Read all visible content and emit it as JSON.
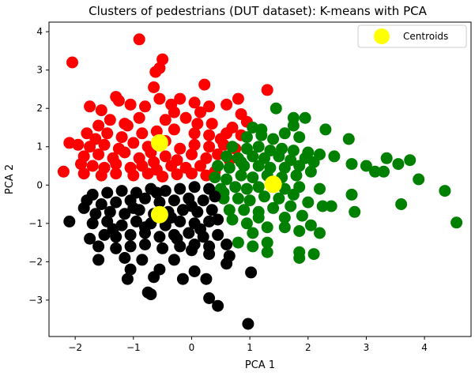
{
  "chart_data": {
    "type": "scatter",
    "title": "Clusters of pedestrians (DUT dataset): K-means with PCA",
    "xlabel": "PCA 1",
    "ylabel": "PCA 2",
    "xlim": [
      -2.45,
      4.8
    ],
    "ylim": [
      -3.95,
      4.25
    ],
    "xticks": [
      -2,
      -1,
      0,
      1,
      2,
      3,
      4
    ],
    "yticks": [
      -3,
      -2,
      -1,
      0,
      1,
      2,
      3,
      4
    ],
    "grid": false,
    "legend_position": "top-right",
    "series": [
      {
        "color": "#ff0000",
        "points": [
          [
            -0.9,
            3.8
          ],
          [
            -2.05,
            3.2
          ],
          [
            -0.5,
            3.28
          ],
          [
            -0.55,
            3.05
          ],
          [
            -0.62,
            2.95
          ],
          [
            -0.65,
            2.55
          ],
          [
            0.22,
            2.62
          ],
          [
            -1.3,
            2.3
          ],
          [
            -1.75,
            2.05
          ],
          [
            -1.55,
            1.95
          ],
          [
            -1.25,
            2.2
          ],
          [
            -1.05,
            2.1
          ],
          [
            -0.8,
            2.05
          ],
          [
            -0.55,
            2.25
          ],
          [
            -0.35,
            2.1
          ],
          [
            -0.2,
            2.25
          ],
          [
            0.05,
            2.15
          ],
          [
            0.3,
            2.05
          ],
          [
            0.6,
            2.1
          ],
          [
            0.8,
            2.25
          ],
          [
            1.3,
            2.48
          ],
          [
            0.85,
            1.85
          ],
          [
            -1.6,
            1.55
          ],
          [
            -1.4,
            1.7
          ],
          [
            -1.15,
            1.6
          ],
          [
            -0.9,
            1.75
          ],
          [
            -0.45,
            1.7
          ],
          [
            -0.1,
            1.75
          ],
          [
            0.1,
            1.6
          ],
          [
            0.35,
            1.6
          ],
          [
            0.7,
            1.5
          ],
          [
            0.95,
            1.65
          ],
          [
            -1.8,
            1.35
          ],
          [
            -1.65,
            1.2
          ],
          [
            -1.45,
            1.35
          ],
          [
            -1.2,
            1.25
          ],
          [
            -0.85,
            1.35
          ],
          [
            -0.6,
            1.4
          ],
          [
            -0.3,
            1.45
          ],
          [
            0.05,
            1.35
          ],
          [
            0.3,
            1.3
          ],
          [
            0.6,
            1.35
          ],
          [
            0.85,
            1.3
          ],
          [
            -2.1,
            1.1
          ],
          [
            -1.95,
            1.05
          ],
          [
            -1.75,
            1.0
          ],
          [
            -1.5,
            1.05
          ],
          [
            -1.25,
            0.95
          ],
          [
            -1.0,
            1.1
          ],
          [
            -0.75,
            1.0
          ],
          [
            -0.45,
            1.15
          ],
          [
            -0.2,
            0.95
          ],
          [
            0.05,
            1.05
          ],
          [
            0.3,
            1.0
          ],
          [
            0.55,
            1.05
          ],
          [
            0.75,
            0.95
          ],
          [
            -1.85,
            0.75
          ],
          [
            -1.6,
            0.8
          ],
          [
            -1.35,
            0.7
          ],
          [
            -1.15,
            0.85
          ],
          [
            -0.9,
            0.7
          ],
          [
            -0.7,
            0.85
          ],
          [
            -0.45,
            0.75
          ],
          [
            -0.25,
            0.65
          ],
          [
            0.0,
            0.8
          ],
          [
            0.25,
            0.7
          ],
          [
            0.45,
            0.8
          ],
          [
            0.65,
            0.65
          ],
          [
            -1.7,
            0.5
          ],
          [
            -1.5,
            0.45
          ],
          [
            -1.3,
            0.55
          ],
          [
            -1.05,
            0.45
          ],
          [
            -0.85,
            0.5
          ],
          [
            -0.6,
            0.4
          ],
          [
            -0.35,
            0.5
          ],
          [
            -0.1,
            0.45
          ],
          [
            0.15,
            0.5
          ],
          [
            0.4,
            0.35
          ],
          [
            -2.2,
            0.35
          ],
          [
            -1.85,
            0.3
          ],
          [
            -1.55,
            0.25
          ],
          [
            -1.3,
            0.3
          ],
          [
            -1.0,
            0.25
          ],
          [
            -0.75,
            0.3
          ],
          [
            -0.5,
            0.22
          ],
          [
            -0.25,
            0.28
          ],
          [
            0.0,
            0.3
          ],
          [
            0.25,
            0.25
          ],
          [
            -1.9,
            0.55
          ],
          [
            -1.1,
            1.55
          ],
          [
            -0.3,
            1.9
          ],
          [
            0.15,
            1.9
          ],
          [
            -0.65,
            0.6
          ],
          [
            0.5,
            1.2
          ]
        ]
      },
      {
        "color": "#008000",
        "points": [
          [
            1.45,
            2.0
          ],
          [
            1.75,
            1.75
          ],
          [
            1.95,
            1.75
          ],
          [
            1.75,
            1.55
          ],
          [
            2.3,
            1.45
          ],
          [
            1.05,
            1.5
          ],
          [
            1.2,
            1.45
          ],
          [
            0.95,
            1.25
          ],
          [
            1.4,
            1.2
          ],
          [
            1.6,
            1.35
          ],
          [
            1.85,
            1.25
          ],
          [
            2.7,
            1.2
          ],
          [
            0.7,
            1.0
          ],
          [
            0.95,
            0.95
          ],
          [
            1.15,
            1.0
          ],
          [
            1.35,
            0.9
          ],
          [
            1.55,
            0.95
          ],
          [
            1.75,
            0.9
          ],
          [
            2.0,
            0.85
          ],
          [
            2.2,
            0.8
          ],
          [
            2.45,
            0.75
          ],
          [
            0.6,
            0.75
          ],
          [
            0.8,
            0.7
          ],
          [
            1.05,
            0.75
          ],
          [
            1.25,
            0.7
          ],
          [
            1.5,
            0.75
          ],
          [
            1.7,
            0.65
          ],
          [
            1.95,
            0.7
          ],
          [
            2.1,
            0.6
          ],
          [
            2.75,
            0.55
          ],
          [
            3.0,
            0.5
          ],
          [
            3.35,
            0.7
          ],
          [
            3.75,
            0.65
          ],
          [
            0.45,
            0.5
          ],
          [
            0.65,
            0.45
          ],
          [
            0.9,
            0.5
          ],
          [
            1.15,
            0.5
          ],
          [
            1.35,
            0.45
          ],
          [
            1.6,
            0.45
          ],
          [
            1.85,
            0.5
          ],
          [
            2.05,
            0.35
          ],
          [
            3.15,
            0.35
          ],
          [
            3.3,
            0.35
          ],
          [
            3.55,
            0.55
          ],
          [
            0.4,
            0.2
          ],
          [
            0.6,
            0.15
          ],
          [
            0.85,
            0.25
          ],
          [
            1.05,
            0.2
          ],
          [
            1.3,
            0.25
          ],
          [
            1.55,
            0.2
          ],
          [
            1.8,
            0.25
          ],
          [
            3.9,
            0.15
          ],
          [
            0.5,
            -0.1
          ],
          [
            0.75,
            -0.05
          ],
          [
            0.95,
            -0.1
          ],
          [
            1.15,
            -0.05
          ],
          [
            1.6,
            -0.1
          ],
          [
            1.85,
            -0.05
          ],
          [
            2.2,
            -0.1
          ],
          [
            4.35,
            -0.15
          ],
          [
            0.55,
            -0.35
          ],
          [
            0.8,
            -0.35
          ],
          [
            1.0,
            -0.4
          ],
          [
            1.25,
            -0.3
          ],
          [
            1.5,
            -0.35
          ],
          [
            2.0,
            -0.45
          ],
          [
            2.75,
            -0.25
          ],
          [
            0.65,
            -0.65
          ],
          [
            0.9,
            -0.65
          ],
          [
            1.15,
            -0.7
          ],
          [
            1.4,
            -0.6
          ],
          [
            1.7,
            -0.55
          ],
          [
            2.25,
            -0.55
          ],
          [
            2.4,
            -0.55
          ],
          [
            2.8,
            -0.7
          ],
          [
            3.6,
            -0.5
          ],
          [
            0.7,
            -0.9
          ],
          [
            0.95,
            -1.0
          ],
          [
            1.15,
            -0.85
          ],
          [
            1.6,
            -0.85
          ],
          [
            1.9,
            -0.8
          ],
          [
            2.05,
            -1.05
          ],
          [
            4.55,
            -0.98
          ],
          [
            1.05,
            -1.25
          ],
          [
            1.3,
            -1.1
          ],
          [
            1.6,
            -1.1
          ],
          [
            1.85,
            -1.2
          ],
          [
            2.2,
            -1.25
          ],
          [
            0.8,
            -1.5
          ],
          [
            1.05,
            -1.6
          ],
          [
            1.3,
            -1.75
          ],
          [
            1.85,
            -1.75
          ],
          [
            1.85,
            -1.9
          ],
          [
            2.1,
            -1.8
          ],
          [
            0.55,
            -0.2
          ],
          [
            1.2,
            1.3
          ],
          [
            0.85,
            0.6
          ],
          [
            1.4,
            0.05
          ],
          [
            1.75,
            -0.25
          ],
          [
            1.3,
            -1.5
          ]
        ]
      },
      {
        "color": "#000000",
        "points": [
          [
            -1.7,
            -0.25
          ],
          [
            -1.45,
            -0.2
          ],
          [
            -1.2,
            -0.15
          ],
          [
            -0.95,
            -0.2
          ],
          [
            -0.7,
            -0.1
          ],
          [
            -0.45,
            -0.15
          ],
          [
            -0.2,
            -0.1
          ],
          [
            0.05,
            -0.05
          ],
          [
            0.3,
            -0.1
          ],
          [
            -1.8,
            -0.4
          ],
          [
            -1.55,
            -0.5
          ],
          [
            -1.3,
            -0.45
          ],
          [
            -1.05,
            -0.4
          ],
          [
            -0.8,
            -0.35
          ],
          [
            -0.55,
            -0.45
          ],
          [
            -0.3,
            -0.4
          ],
          [
            -0.05,
            -0.35
          ],
          [
            0.2,
            -0.4
          ],
          [
            0.4,
            -0.3
          ],
          [
            -1.65,
            -0.75
          ],
          [
            -1.4,
            -0.7
          ],
          [
            -1.15,
            -0.75
          ],
          [
            -0.9,
            -0.65
          ],
          [
            -0.65,
            -0.75
          ],
          [
            -0.4,
            -0.7
          ],
          [
            -0.15,
            -0.65
          ],
          [
            0.1,
            -0.7
          ],
          [
            0.35,
            -0.65
          ],
          [
            -2.1,
            -0.95
          ],
          [
            -1.7,
            -1.0
          ],
          [
            -1.45,
            -0.95
          ],
          [
            -1.2,
            -1.05
          ],
          [
            -0.95,
            -0.95
          ],
          [
            -0.7,
            -1.0
          ],
          [
            -0.45,
            -1.05
          ],
          [
            -0.2,
            -0.95
          ],
          [
            0.05,
            -1.0
          ],
          [
            0.3,
            -0.95
          ],
          [
            -1.75,
            -1.4
          ],
          [
            -1.5,
            -1.3
          ],
          [
            -1.3,
            -1.35
          ],
          [
            -1.05,
            -1.3
          ],
          [
            -0.8,
            -1.25
          ],
          [
            -0.55,
            -1.35
          ],
          [
            -0.3,
            -1.3
          ],
          [
            -0.05,
            -1.25
          ],
          [
            0.2,
            -1.35
          ],
          [
            0.45,
            -1.3
          ],
          [
            -1.6,
            -1.6
          ],
          [
            -1.3,
            -1.65
          ],
          [
            -1.05,
            -1.6
          ],
          [
            -0.8,
            -1.55
          ],
          [
            -0.5,
            -1.65
          ],
          [
            -0.2,
            -1.6
          ],
          [
            0.05,
            -1.55
          ],
          [
            0.3,
            -1.6
          ],
          [
            -1.6,
            -1.95
          ],
          [
            -1.15,
            -1.9
          ],
          [
            -0.85,
            -1.95
          ],
          [
            -0.3,
            -1.95
          ],
          [
            0.0,
            -1.7
          ],
          [
            0.6,
            -1.55
          ],
          [
            -1.05,
            -2.2
          ],
          [
            -1.1,
            -2.45
          ],
          [
            -0.55,
            -2.2
          ],
          [
            -0.65,
            -2.4
          ],
          [
            -0.15,
            -2.45
          ],
          [
            0.05,
            -2.25
          ],
          [
            0.25,
            -2.45
          ],
          [
            0.6,
            -2.05
          ],
          [
            1.02,
            -2.28
          ],
          [
            -0.75,
            -2.8
          ],
          [
            -0.7,
            -2.85
          ],
          [
            0.3,
            -2.95
          ],
          [
            0.45,
            -3.15
          ],
          [
            0.97,
            -3.62
          ],
          [
            0.65,
            -1.85
          ],
          [
            -1.85,
            -0.6
          ],
          [
            -1.0,
            -0.6
          ],
          [
            -0.25,
            -1.4
          ],
          [
            0.15,
            -1.15
          ],
          [
            -0.6,
            -0.2
          ],
          [
            0.0,
            -0.55
          ],
          [
            -1.35,
            -1.15
          ],
          [
            0.45,
            -0.9
          ],
          [
            -0.35,
            -0.85
          ],
          [
            -0.8,
            -1.1
          ],
          [
            0.3,
            -1.8
          ]
        ]
      }
    ],
    "centroids": {
      "name": "Centroids",
      "color": "#ffff00",
      "points": [
        [
          -0.55,
          1.1
        ],
        [
          1.4,
          0.02
        ],
        [
          -0.55,
          -0.77
        ]
      ]
    }
  }
}
